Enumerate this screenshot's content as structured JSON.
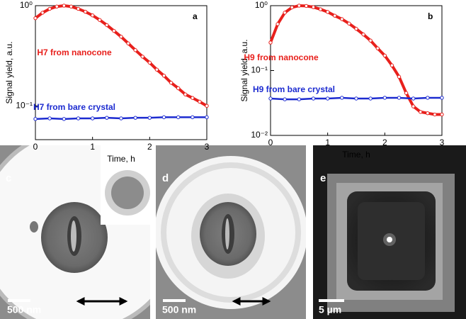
{
  "chart_data": [
    {
      "type": "line",
      "panel": "a",
      "xlabel": "Time, h",
      "ylabel": "Signal yield, a.u.",
      "log_y": true,
      "xlim": [
        0,
        3
      ],
      "xticks": [
        0,
        1,
        2,
        3
      ],
      "ylim": [
        0.046,
        1
      ],
      "yticks": [
        {
          "value": 1,
          "label": "10⁰"
        },
        {
          "value": 0.1,
          "label": "10⁻¹"
        }
      ],
      "series": [
        {
          "name": "H7 from nanocone",
          "color": "#e8201c",
          "x": [
            0,
            0.125,
            0.25,
            0.375,
            0.5,
            0.625,
            0.75,
            0.875,
            1,
            1.125,
            1.25,
            1.375,
            1.5,
            1.625,
            1.75,
            1.875,
            2,
            2.125,
            2.25,
            2.375,
            2.5,
            2.625,
            2.75,
            2.875,
            3
          ],
          "values": [
            0.75,
            0.85,
            0.93,
            0.98,
            1.0,
            0.98,
            0.93,
            0.87,
            0.8,
            0.72,
            0.64,
            0.56,
            0.49,
            0.42,
            0.36,
            0.31,
            0.27,
            0.23,
            0.2,
            0.17,
            0.15,
            0.13,
            0.12,
            0.11,
            0.1
          ]
        },
        {
          "name": "H7 from bare crystal",
          "color": "#1c2bd0",
          "x": [
            0,
            0.25,
            0.5,
            0.75,
            1,
            1.25,
            1.5,
            1.75,
            2,
            2.25,
            2.5,
            2.75,
            3
          ],
          "values": [
            0.074,
            0.075,
            0.074,
            0.075,
            0.075,
            0.076,
            0.075,
            0.076,
            0.076,
            0.077,
            0.077,
            0.077,
            0.077
          ]
        }
      ]
    },
    {
      "type": "line",
      "panel": "b",
      "xlabel": "Time, h",
      "ylabel": "Signal yield, a.u.",
      "log_y": true,
      "xlim": [
        0,
        3
      ],
      "xticks": [
        0,
        1,
        2,
        3
      ],
      "ylim": [
        0.01,
        1
      ],
      "yticks": [
        {
          "value": 1,
          "label": "10⁰"
        },
        {
          "value": 0.1,
          "label": "10⁻¹"
        },
        {
          "value": 0.01,
          "label": "10⁻²"
        }
      ],
      "series": [
        {
          "name": "H9 from nanocone",
          "color": "#e8201c",
          "x": [
            0,
            0.125,
            0.25,
            0.375,
            0.5,
            0.625,
            0.75,
            0.875,
            1,
            1.125,
            1.25,
            1.375,
            1.5,
            1.625,
            1.75,
            1.875,
            2,
            2.125,
            2.25,
            2.375,
            2.5,
            2.625,
            2.75,
            2.875,
            3
          ],
          "values": [
            0.27,
            0.52,
            0.78,
            0.94,
            1.0,
            0.99,
            0.95,
            0.88,
            0.8,
            0.7,
            0.62,
            0.53,
            0.44,
            0.36,
            0.29,
            0.22,
            0.17,
            0.12,
            0.08,
            0.045,
            0.028,
            0.023,
            0.022,
            0.021,
            0.021
          ]
        },
        {
          "name": "H9 from bare crystal",
          "color": "#1c2bd0",
          "x": [
            0,
            0.25,
            0.5,
            0.75,
            1,
            1.25,
            1.5,
            1.75,
            2,
            2.25,
            2.5,
            2.75,
            3
          ],
          "values": [
            0.037,
            0.036,
            0.036,
            0.037,
            0.037,
            0.038,
            0.037,
            0.037,
            0.038,
            0.038,
            0.037,
            0.038,
            0.038
          ]
        }
      ]
    }
  ],
  "panels": [
    {
      "label": "c",
      "scale_label": "500 nm"
    },
    {
      "label": "d",
      "scale_label": "500 nm"
    },
    {
      "label": "e",
      "scale_label": "5 µm"
    }
  ]
}
